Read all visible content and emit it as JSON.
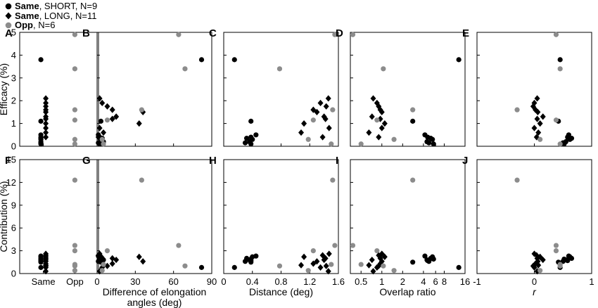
{
  "legend": [
    {
      "name_bold": "Same",
      "name_rest": ", SHORT, N=9",
      "marker": "circle",
      "color": "#000000"
    },
    {
      "name_bold": "Same",
      "name_rest": ", LONG, N=11",
      "marker": "diamond",
      "color": "#000000"
    },
    {
      "name_bold": "Opp",
      "name_rest": ", N=6",
      "marker": "circle",
      "color": "#8c8c8c"
    }
  ],
  "colors": {
    "same": "#000000",
    "opp": "#8c8c8c",
    "axis": "#000000"
  },
  "rows": {
    "top": {
      "ylabel": "Efficacy (%)",
      "ylim": [
        0,
        5
      ],
      "yticks": [
        "0",
        "1",
        "2",
        "3",
        "4",
        "5"
      ]
    },
    "bottom": {
      "ylabel": "Contribution (%)",
      "ylim": [
        0,
        15
      ],
      "yticks": [
        "0",
        "3",
        "6",
        "9",
        "12",
        "15"
      ]
    }
  },
  "columns": [
    {
      "panels": [
        "A",
        "F"
      ],
      "xlabel": [
        "",
        ""
      ],
      "xtick_labels": [
        "Same",
        "Opp"
      ]
    },
    {
      "panels": [
        "B",
        "G"
      ],
      "xlabel": [
        "Difference of elongation",
        "angles (deg)"
      ],
      "xlim": [
        0,
        90
      ],
      "xtick_labels": [
        "0",
        "30",
        "60",
        "90"
      ]
    },
    {
      "panels": [
        "C",
        "H"
      ],
      "xlabel": [
        "Distance (deg)",
        ""
      ],
      "xlim": [
        0,
        1.6
      ],
      "xtick_labels": [
        "0",
        "0.4",
        "0.8",
        "1.2",
        "1.6"
      ]
    },
    {
      "panels": [
        "D",
        "I"
      ],
      "xlabel": [
        "Overlap ratio",
        ""
      ],
      "xlim_log": [
        0.35,
        16
      ],
      "xtick_labels": [
        "0.5",
        "1",
        "2",
        "4",
        "6",
        "8",
        "16"
      ]
    },
    {
      "panels": [
        "E",
        "J"
      ],
      "xlabel": [
        "r",
        ""
      ],
      "xlim": [
        -1,
        1
      ],
      "xtick_labels": [
        "-1",
        "0",
        "1"
      ]
    }
  ],
  "chart_data": {
    "type": "scatter",
    "groups": [
      "Same, SHORT, N=9",
      "Same, LONG, N=11",
      "Opp, N=6"
    ],
    "efficacy": {
      "short": [
        3.8,
        1.1,
        0.5,
        0.4,
        0.35,
        0.3,
        0.2,
        0.15,
        0.1
      ],
      "long": [
        2.1,
        1.9,
        1.75,
        1.6,
        1.5,
        1.3,
        1.2,
        1.0,
        0.8,
        0.6,
        0.4
      ],
      "opp": [
        4.9,
        3.4,
        1.6,
        1.15,
        0.3,
        0.1
      ]
    },
    "contribution": {
      "short": [
        0.8,
        1.5,
        2.3,
        1.7,
        2.0,
        2.2,
        1.8,
        1.6,
        1.9
      ],
      "long": [
        0.3,
        0.8,
        1.0,
        1.3,
        1.6,
        1.8,
        2.0,
        2.2,
        2.6,
        1.1,
        2.4
      ],
      "opp": [
        3.7,
        1.0,
        12.3,
        3.0,
        0.4,
        1.2
      ]
    },
    "angle_diff_deg": {
      "short": [
        82,
        3,
        1,
        2,
        4,
        3,
        5,
        1,
        2
      ],
      "long": [
        2,
        4,
        8,
        12,
        36,
        15,
        12,
        33,
        2,
        5,
        1
      ],
      "opp": [
        64,
        69,
        35,
        8,
        4,
        5
      ]
    },
    "distance_deg": {
      "short": [
        0.15,
        0.38,
        0.45,
        0.38,
        0.32,
        0.4,
        0.36,
        0.3,
        0.38
      ],
      "long": [
        1.46,
        1.35,
        1.43,
        1.25,
        1.3,
        1.4,
        1.42,
        1.12,
        1.47,
        1.08,
        1.38
      ],
      "opp": [
        1.55,
        0.78,
        1.52,
        1.25,
        1.18,
        1.5
      ]
    },
    "overlap_ratio": {
      "short": [
        13.0,
        2.8,
        4.2,
        4.6,
        5.1,
        5.4,
        4.5,
        4.8,
        5.6
      ],
      "long": [
        0.75,
        0.85,
        0.9,
        0.95,
        1.0,
        0.72,
        0.95,
        1.1,
        1.0,
        0.65,
        0.9
      ],
      "opp": [
        0.38,
        1.05,
        2.8,
        0.85,
        1.5,
        0.5
      ]
    },
    "r": {
      "short": [
        0.45,
        0.42,
        0.6,
        0.58,
        0.65,
        0.62,
        0.55,
        0.5,
        0.52
      ],
      "long": [
        0.05,
        0.0,
        -0.02,
        0.02,
        0.06,
        0.15,
        0.05,
        0.1,
        0.0,
        0.07,
        0.04
      ],
      "opp": [
        0.38,
        0.45,
        -0.3,
        0.38,
        0.1,
        0.45
      ]
    },
    "axes": {
      "efficacy": {
        "label": "Efficacy (%)",
        "ylim": [
          0,
          5
        ]
      },
      "contribution": {
        "label": "Contribution (%)",
        "ylim": [
          0,
          15
        ]
      },
      "angle_diff_deg": {
        "label": "Difference of elongation angles (deg)",
        "xlim": [
          0,
          90
        ]
      },
      "distance_deg": {
        "label": "Distance (deg)",
        "xlim": [
          0,
          1.6
        ]
      },
      "overlap_ratio": {
        "label": "Overlap ratio",
        "xscale": "log",
        "xlim": [
          0.35,
          16
        ]
      },
      "r": {
        "label": "r",
        "xlim": [
          -1,
          1
        ]
      }
    },
    "grid": false,
    "legend_position": "top-left"
  }
}
